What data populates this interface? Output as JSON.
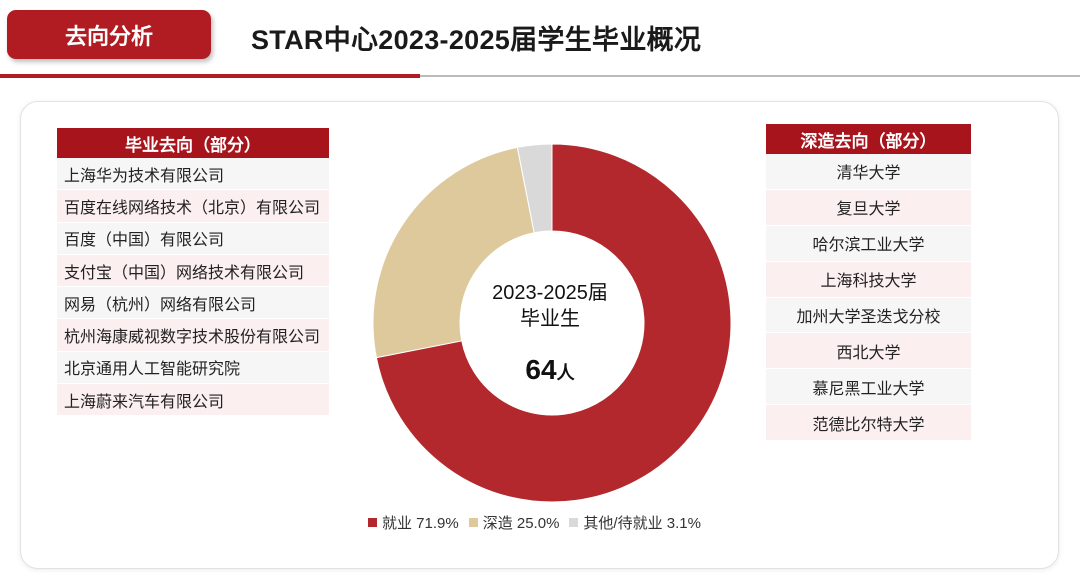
{
  "header": {
    "tag": "去向分析",
    "title": "STAR中心2023-2025届学生毕业概况"
  },
  "left_box": {
    "title": "毕业去向（部分）",
    "items": [
      "上海华为技术有限公司",
      "百度在线网络技术（北京）有限公司",
      "百度（中国）有限公司",
      "支付宝（中国）网络技术有限公司",
      "网易（杭州）网络有限公司",
      "杭州海康威视数字技术股份有限公司",
      "北京通用人工智能研究院",
      "上海蔚来汽车有限公司"
    ]
  },
  "right_box": {
    "title": "深造去向（部分）",
    "items": [
      "清华大学",
      "复旦大学",
      "哈尔滨工业大学",
      "上海科技大学",
      "加州大学圣迭戈分校",
      "西北大学",
      "慕尼黑工业大学",
      "范德比尔特大学"
    ]
  },
  "center": {
    "line1": "2023-2025届",
    "line2": "毕业生",
    "number": "64",
    "unit": "人"
  },
  "chart_data": {
    "type": "pie",
    "title": "",
    "categories": [
      "就业",
      "深造",
      "其他/待就业"
    ],
    "values": [
      71.9,
      25.0,
      3.1
    ],
    "value_labels": [
      "71.9%",
      "25.0%",
      "3.1%"
    ],
    "colors": [
      "#b2282d",
      "#dec99c",
      "#d9d9d9"
    ],
    "legend_position": "bottom"
  }
}
